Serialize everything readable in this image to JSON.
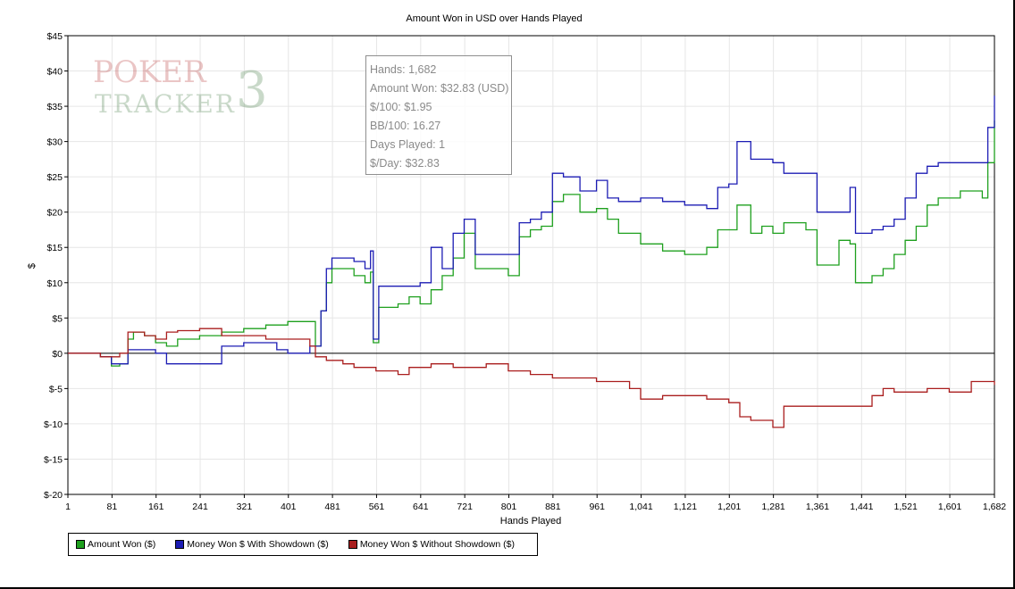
{
  "chart_data": {
    "type": "line",
    "title": "Amount Won in USD over Hands Played",
    "xlabel": "Hands Played",
    "ylabel": "$",
    "xlim": [
      1,
      1682
    ],
    "ylim": [
      -20,
      45
    ],
    "grid": true,
    "x_ticks": [
      1,
      81,
      161,
      241,
      321,
      401,
      481,
      561,
      641,
      721,
      801,
      881,
      961,
      1041,
      1121,
      1201,
      1281,
      1361,
      1441,
      1521,
      1601,
      1682
    ],
    "x_tick_labels": [
      "1",
      "81",
      "161",
      "241",
      "321",
      "401",
      "481",
      "561",
      "641",
      "721",
      "801",
      "881",
      "961",
      "1,041",
      "1,121",
      "1,201",
      "1,281",
      "1,361",
      "1,441",
      "1,521",
      "1,601",
      "1,682"
    ],
    "y_ticks": [
      -20,
      -15,
      -10,
      -5,
      0,
      5,
      10,
      15,
      20,
      25,
      30,
      35,
      40,
      45
    ],
    "y_tick_labels": [
      "$-20",
      "$-15",
      "$-10",
      "$-5",
      "$0",
      "$5",
      "$10",
      "$15",
      "$20",
      "$25",
      "$30",
      "$35",
      "$40",
      "$45"
    ],
    "legend_position": "bottom-left",
    "series": [
      {
        "name": "Amount Won ($)",
        "color": "#1ea01e",
        "x": [
          1,
          20,
          60,
          80,
          95,
          110,
          120,
          140,
          160,
          180,
          200,
          240,
          280,
          320,
          360,
          400,
          440,
          450,
          460,
          470,
          480,
          490,
          520,
          540,
          550,
          555,
          565,
          600,
          620,
          640,
          660,
          680,
          700,
          720,
          740,
          780,
          800,
          820,
          840,
          860,
          880,
          900,
          930,
          960,
          980,
          1000,
          1040,
          1080,
          1120,
          1160,
          1180,
          1200,
          1215,
          1240,
          1260,
          1280,
          1300,
          1320,
          1340,
          1360,
          1380,
          1400,
          1420,
          1430,
          1440,
          1460,
          1480,
          1500,
          1520,
          1540,
          1560,
          1580,
          1600,
          1620,
          1640,
          1660,
          1670,
          1682
        ],
        "values": [
          0,
          0,
          -0.5,
          -1.8,
          -1.5,
          2,
          3,
          2.5,
          1.5,
          1,
          2,
          2.5,
          3,
          3.5,
          4,
          4.5,
          4.5,
          1,
          6,
          10,
          12,
          12,
          11,
          10,
          11.5,
          1.5,
          6.5,
          7,
          8,
          7,
          9,
          11,
          13.5,
          17,
          12,
          12,
          11,
          16.5,
          17.5,
          18,
          21.5,
          22.5,
          20,
          20.5,
          19,
          17,
          15.5,
          14.5,
          14,
          15,
          17.5,
          17.5,
          21,
          17,
          18,
          17,
          18.5,
          18.5,
          17.5,
          12.5,
          12.5,
          16,
          15.5,
          10,
          10,
          11,
          12,
          14,
          16,
          18,
          21,
          22,
          22,
          23,
          23,
          22,
          27,
          33
        ]
      },
      {
        "name": "Money Won $ With Showdown ($)",
        "color": "#1c1cb4",
        "x": [
          1,
          20,
          60,
          80,
          95,
          110,
          140,
          160,
          180,
          200,
          240,
          280,
          320,
          360,
          380,
          400,
          440,
          450,
          460,
          470,
          480,
          490,
          520,
          540,
          550,
          555,
          565,
          600,
          620,
          640,
          660,
          680,
          700,
          720,
          740,
          780,
          800,
          820,
          840,
          860,
          880,
          900,
          930,
          960,
          980,
          1000,
          1040,
          1080,
          1120,
          1160,
          1180,
          1200,
          1215,
          1240,
          1260,
          1280,
          1300,
          1320,
          1340,
          1360,
          1380,
          1400,
          1420,
          1430,
          1440,
          1460,
          1480,
          1500,
          1520,
          1540,
          1560,
          1580,
          1600,
          1620,
          1640,
          1660,
          1670,
          1682
        ],
        "values": [
          0,
          0,
          -0.5,
          -1.5,
          -1.5,
          0.5,
          0.5,
          0,
          -1.5,
          -1.5,
          -1.5,
          1,
          1.5,
          1.5,
          0.5,
          0,
          1,
          1,
          6,
          12,
          13.5,
          13.5,
          13,
          12,
          14.5,
          2,
          9.5,
          9.5,
          9.5,
          10,
          15,
          12,
          17,
          19,
          14,
          14,
          14,
          18.5,
          19,
          20,
          25.5,
          25,
          23,
          24.5,
          22,
          21.5,
          22,
          21.5,
          21,
          20.5,
          23.5,
          24,
          30,
          27.5,
          27.5,
          27,
          25.5,
          25.5,
          25.5,
          20,
          20,
          20,
          23.5,
          17,
          17,
          17.5,
          18,
          19,
          22,
          25.5,
          26.5,
          27,
          27,
          27,
          27,
          27,
          32,
          36.5
        ]
      },
      {
        "name": "Money Won $ Without Showdown ($)",
        "color": "#aa1e1e",
        "x": [
          1,
          20,
          60,
          80,
          95,
          110,
          140,
          160,
          180,
          200,
          240,
          280,
          320,
          360,
          400,
          440,
          450,
          470,
          500,
          520,
          560,
          600,
          620,
          660,
          700,
          720,
          760,
          800,
          840,
          880,
          920,
          960,
          1000,
          1020,
          1040,
          1080,
          1120,
          1160,
          1200,
          1220,
          1240,
          1260,
          1280,
          1300,
          1320,
          1360,
          1400,
          1440,
          1460,
          1480,
          1500,
          1520,
          1560,
          1600,
          1620,
          1640,
          1660,
          1682
        ],
        "values": [
          0,
          0,
          -0.5,
          -0.5,
          0,
          3,
          2.5,
          2,
          3,
          3.2,
          3.5,
          2.5,
          2.5,
          2,
          2,
          1,
          -0.5,
          -1,
          -1.5,
          -2,
          -2.5,
          -3,
          -2,
          -1.5,
          -2,
          -2,
          -1.5,
          -2.5,
          -3,
          -3.5,
          -3.5,
          -4,
          -4,
          -5,
          -6.5,
          -6,
          -6,
          -6.5,
          -7,
          -9,
          -9.5,
          -9.5,
          -10.5,
          -7.5,
          -7.5,
          -7.5,
          -7.5,
          -7.5,
          -6,
          -5,
          -5.5,
          -5.5,
          -5,
          -5.5,
          -5.5,
          -4,
          -4,
          -4.5
        ]
      }
    ]
  },
  "tooltip": {
    "lines": [
      "Hands: 1,682",
      "Amount Won: $32.83 (USD)",
      "$/100: $1.95",
      "BB/100: 16.27",
      "Days Played: 1",
      "$/Day: $32.83"
    ]
  },
  "watermark": {
    "line1": "POKER",
    "line2": "TRACKER",
    "numeral": "3"
  }
}
